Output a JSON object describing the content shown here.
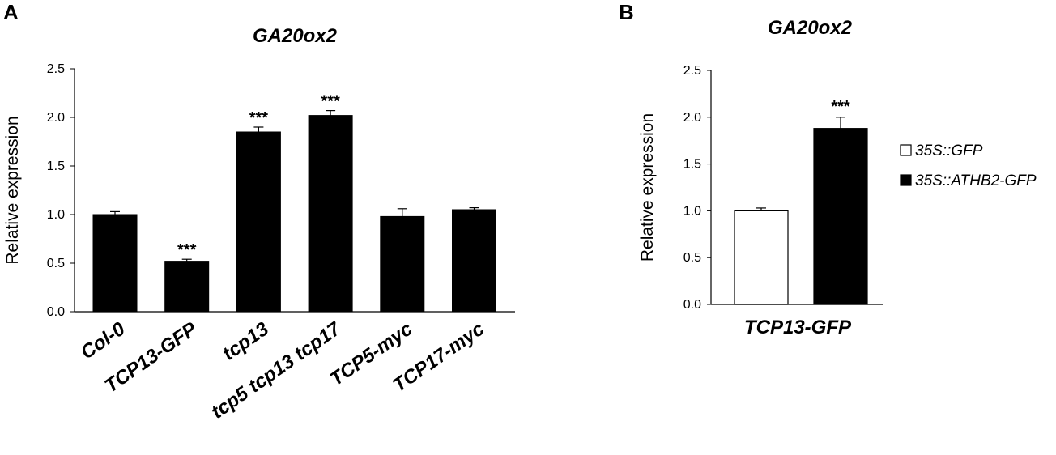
{
  "chart_data": [
    {
      "panel": "A",
      "type": "bar",
      "title": "GA20ox2",
      "xlabel": "",
      "ylabel": "Relative expression",
      "ylim": [
        0,
        2.5
      ],
      "yticks": [
        "0.0",
        "0.5",
        "1.0",
        "1.5",
        "2.0",
        "2.5"
      ],
      "grid": false,
      "categories": [
        "Col-0",
        "TCP13-GFP",
        "tcp13",
        "tcp5 tcp13 tcp17",
        "TCP5-myc",
        "TCP17-myc"
      ],
      "values": [
        1.0,
        0.52,
        1.85,
        2.02,
        0.98,
        1.05
      ],
      "errors": [
        0.03,
        0.02,
        0.05,
        0.05,
        0.08,
        0.02
      ],
      "significance": [
        "",
        "***",
        "***",
        "***",
        "",
        ""
      ],
      "colors": {
        "bar": "#000000"
      }
    },
    {
      "panel": "B",
      "type": "bar",
      "title": "GA20ox2",
      "xlabel": "",
      "ylabel": "Relative expression",
      "ylim": [
        0,
        2.5
      ],
      "yticks": [
        "0.0",
        "0.5",
        "1.0",
        "1.5",
        "2.0",
        "2.5"
      ],
      "grid": false,
      "categories": [
        "TCP13-GFP"
      ],
      "series": [
        {
          "name": "35S::GFP",
          "values": [
            1.0
          ],
          "errors": [
            0.03
          ],
          "significance": [
            ""
          ],
          "color": "#ffffff"
        },
        {
          "name": "35S::ATHB2-GFP",
          "values": [
            1.88
          ],
          "errors": [
            0.12
          ],
          "significance": [
            "***"
          ],
          "color": "#000000"
        }
      ],
      "legend_position": "right"
    }
  ]
}
